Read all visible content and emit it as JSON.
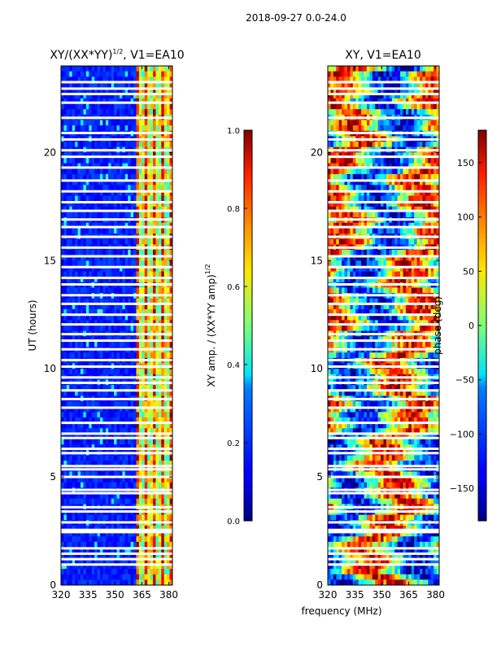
{
  "suptitle": "2018-09-27 0.0-24.0",
  "chart_data": [
    {
      "type": "heatmap",
      "title_main": "XY/(XX*YY)",
      "title_sup": "1/2",
      "title_tail": ", V1=EA10",
      "xlabel": "",
      "ylabel": "UT (hours)",
      "xlim": [
        320,
        382
      ],
      "ylim": [
        0,
        24
      ],
      "x_ticks": [
        320,
        335,
        350,
        365,
        380
      ],
      "y_ticks": [
        0,
        5,
        10,
        15,
        20
      ],
      "content": "normalized XY amplitude vs frequency and time; low (blue) below ~362 MHz, high (green-red) 362-382 MHz, with white flagged time rows",
      "colorbar": {
        "label_main": "XY amp. / (XX*YY amp)",
        "label_sup": "1/2",
        "range": [
          0.0,
          1.0
        ],
        "ticks": [
          "0.0",
          "0.2",
          "0.4",
          "0.6",
          "0.8",
          "1.0"
        ],
        "colormap": "jet"
      }
    },
    {
      "type": "heatmap",
      "title": "XY, V1=EA10",
      "xlabel": "frequency (MHz)",
      "ylabel": "",
      "xlim": [
        320,
        382
      ],
      "ylim": [
        0,
        24
      ],
      "x_ticks": [
        320,
        335,
        350,
        365,
        380
      ],
      "y_ticks": [
        0,
        5,
        10,
        15,
        20
      ],
      "content": "XY phase vs frequency and time; mixed values spanning -180 to 180 deg, with white flagged time rows",
      "colorbar": {
        "label": "phase (deg)",
        "range": [
          -180,
          180
        ],
        "ticks": [
          "−150",
          "−100",
          "−50",
          "0",
          "50",
          "100",
          "150"
        ],
        "tick_values": [
          -150,
          -100,
          -50,
          0,
          50,
          100,
          150
        ],
        "colormap": "jet"
      }
    }
  ],
  "flagged_hours": [
    0.95,
    1.2,
    1.45,
    1.7,
    2.45,
    2.55,
    2.9,
    3.4,
    3.6,
    4.25,
    4.4,
    5.0,
    5.35,
    5.5,
    6.1,
    6.3,
    6.8,
    7.0,
    7.5,
    8.2,
    8.6,
    9.0,
    9.35,
    9.6,
    10.1,
    10.4,
    10.9,
    11.3,
    11.6,
    12.05,
    12.5,
    13.0,
    13.4,
    13.9,
    14.2,
    14.7,
    15.2,
    15.6,
    16.1,
    16.55,
    16.9,
    17.3,
    17.7,
    18.2,
    18.7,
    19.3,
    19.8,
    20.1,
    20.6,
    20.9,
    21.6,
    22.3,
    22.7,
    22.95,
    23.25
  ]
}
